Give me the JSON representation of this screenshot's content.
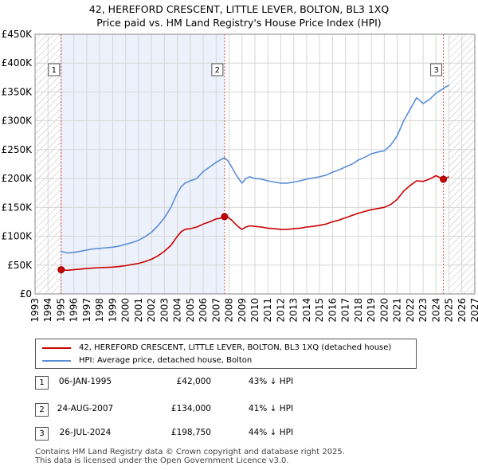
{
  "title": {
    "line1": "42, HEREFORD CRESCENT, LITTLE LEVER, BOLTON, BL3 1XQ",
    "line2": "Price paid vs. HM Land Registry's House Price Index (HPI)"
  },
  "chart_data": {
    "type": "line",
    "title": "42, HEREFORD CRESCENT, LITTLE LEVER, BOLTON, BL3 1XQ — Price paid vs. HM Land Registry's House Price Index (HPI)",
    "xlabel": "",
    "ylabel": "",
    "xlim": [
      1993,
      2027
    ],
    "ylim": [
      0,
      450000
    ],
    "x_ticks": [
      "1993",
      "1994",
      "1995",
      "1996",
      "1997",
      "1998",
      "1999",
      "2000",
      "2001",
      "2002",
      "2003",
      "2004",
      "2005",
      "2006",
      "2007",
      "2008",
      "2009",
      "2010",
      "2011",
      "2012",
      "2013",
      "2014",
      "2015",
      "2016",
      "2017",
      "2018",
      "2019",
      "2020",
      "2021",
      "2022",
      "2023",
      "2024",
      "2025",
      "2026",
      "2027"
    ],
    "y_ticks": [
      {
        "value": 0,
        "label": "£0"
      },
      {
        "value": 50000,
        "label": "£50K"
      },
      {
        "value": 100000,
        "label": "£100K"
      },
      {
        "value": 150000,
        "label": "£150K"
      },
      {
        "value": 200000,
        "label": "£200K"
      },
      {
        "value": 250000,
        "label": "£250K"
      },
      {
        "value": 300000,
        "label": "£300K"
      },
      {
        "value": 350000,
        "label": "£350K"
      },
      {
        "value": 400000,
        "label": "£400K"
      },
      {
        "value": 450000,
        "label": "£450K"
      }
    ],
    "grid": true,
    "hatched_regions": [
      [
        1993,
        1995.0
      ],
      [
        2025.0,
        2027
      ]
    ],
    "shaded_region": [
      1995.02,
      2007.65
    ],
    "sale_markers": [
      {
        "label": "1",
        "x": 1995.02,
        "y": 42000
      },
      {
        "label": "2",
        "x": 2007.65,
        "y": 134000
      },
      {
        "label": "3",
        "x": 2024.57,
        "y": 198750
      }
    ],
    "series": [
      {
        "name": "42, HEREFORD CRESCENT, LITTLE LEVER, BOLTON, BL3 1XQ (detached house)",
        "color": "#cc0000",
        "x": [
          1995.02,
          1995.5,
          1996,
          1996.5,
          1997,
          1997.5,
          1998,
          1998.5,
          1999,
          1999.5,
          2000,
          2000.5,
          2001,
          2001.5,
          2002,
          2002.5,
          2003,
          2003.5,
          2004,
          2004.3,
          2004.6,
          2005,
          2005.5,
          2006,
          2006.5,
          2007,
          2007.3,
          2007.65,
          2007.9,
          2008.2,
          2008.5,
          2008.8,
          2009,
          2009.3,
          2009.6,
          2010,
          2010.5,
          2011,
          2011.5,
          2012,
          2012.5,
          2013,
          2013.5,
          2014,
          2014.5,
          2015,
          2015.5,
          2016,
          2016.5,
          2017,
          2017.5,
          2018,
          2018.5,
          2019,
          2019.5,
          2020,
          2020.5,
          2021,
          2021.5,
          2022,
          2022.5,
          2023,
          2023.5,
          2024,
          2024.57,
          2025
        ],
        "y": [
          42000,
          41000,
          42000,
          43000,
          44000,
          45000,
          45500,
          46000,
          46500,
          47500,
          49000,
          51000,
          53000,
          56000,
          60000,
          66000,
          74000,
          84000,
          100000,
          108000,
          112000,
          113000,
          116000,
          121000,
          125000,
          130000,
          131000,
          134000,
          133000,
          128000,
          121000,
          115000,
          112000,
          116000,
          118000,
          117000,
          116000,
          114000,
          113000,
          112000,
          112000,
          113000,
          114000,
          116000,
          117000,
          119000,
          121000,
          125000,
          128000,
          132000,
          136000,
          140000,
          143000,
          146000,
          148000,
          150000,
          155000,
          164000,
          178000,
          188000,
          196000,
          195000,
          199000,
          205000,
          198750,
          203000
        ]
      },
      {
        "name": "HPI: Average price, detached house, Bolton",
        "color": "#5b8ed6",
        "x": [
          1995.02,
          1995.5,
          1996,
          1996.5,
          1997,
          1997.5,
          1998,
          1998.5,
          1999,
          1999.5,
          2000,
          2000.5,
          2001,
          2001.5,
          2002,
          2002.5,
          2003,
          2003.5,
          2004,
          2004.3,
          2004.6,
          2005,
          2005.5,
          2006,
          2006.5,
          2007,
          2007.3,
          2007.65,
          2007.9,
          2008.2,
          2008.5,
          2008.8,
          2009,
          2009.3,
          2009.6,
          2010,
          2010.5,
          2011,
          2011.5,
          2012,
          2012.5,
          2013,
          2013.5,
          2014,
          2014.5,
          2015,
          2015.5,
          2016,
          2016.5,
          2017,
          2017.5,
          2018,
          2018.5,
          2019,
          2019.5,
          2020,
          2020.5,
          2021,
          2021.5,
          2022,
          2022.5,
          2023,
          2023.5,
          2024,
          2024.57,
          2025
        ],
        "y": [
          74000,
          71000,
          72000,
          74000,
          76000,
          78000,
          79000,
          80000,
          81000,
          83000,
          86000,
          89000,
          93000,
          99000,
          107000,
          118000,
          132000,
          150000,
          175000,
          186000,
          192000,
          196000,
          200000,
          212000,
          220000,
          228000,
          232000,
          236000,
          231000,
          220000,
          208000,
          198000,
          192000,
          200000,
          203000,
          200000,
          199000,
          196000,
          194000,
          192000,
          192000,
          194000,
          196000,
          199000,
          201000,
          203000,
          206000,
          211000,
          215000,
          220000,
          225000,
          232000,
          237000,
          243000,
          246000,
          248000,
          258000,
          274000,
          300000,
          320000,
          340000,
          330000,
          337000,
          348000,
          356000,
          362000
        ]
      }
    ],
    "legend_position": "below-chart"
  },
  "legend": {
    "items": [
      {
        "label": "42, HEREFORD CRESCENT, LITTLE LEVER, BOLTON, BL3 1XQ (detached house)",
        "color": "#cc0000"
      },
      {
        "label": "HPI: Average price, detached house, Bolton",
        "color": "#5b8ed6"
      }
    ]
  },
  "sales": [
    {
      "num": "1",
      "date": "06-JAN-1995",
      "price": "£42,000",
      "hpi": "43% ↓ HPI"
    },
    {
      "num": "2",
      "date": "24-AUG-2007",
      "price": "£134,000",
      "hpi": "41% ↓ HPI"
    },
    {
      "num": "3",
      "date": "26-JUL-2024",
      "price": "£198,750",
      "hpi": "44% ↓ HPI"
    }
  ],
  "footer": {
    "line1": "Contains HM Land Registry data © Crown copyright and database right 2025.",
    "line2": "This data is licensed under the Open Government Licence v3.0."
  }
}
